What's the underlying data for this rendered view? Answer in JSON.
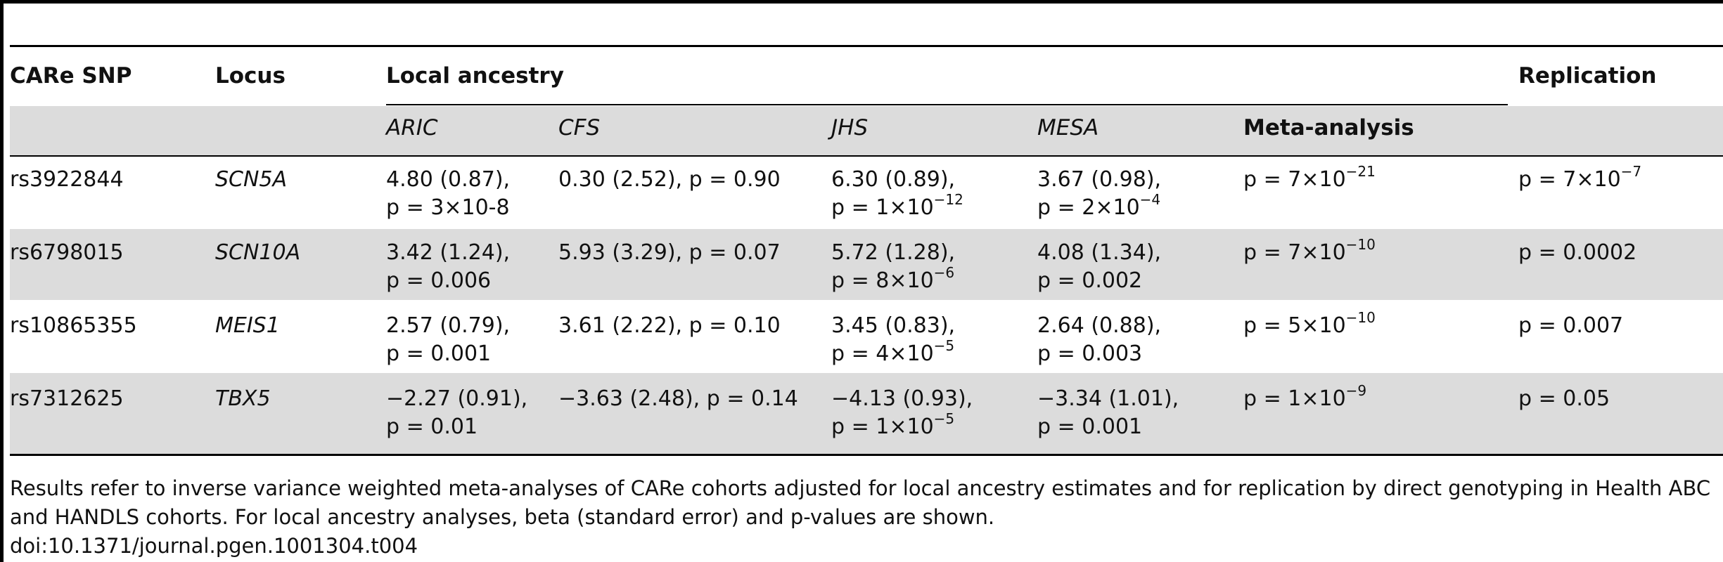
{
  "headers": {
    "snp": "CARe SNP",
    "locus": "Locus",
    "local_ancestry": "Local ancestry",
    "replication": "Replication",
    "aric": "ARIC",
    "cfs": "CFS",
    "jhs": "JHS",
    "mesa": "MESA",
    "meta": "Meta-analysis"
  },
  "rows": [
    {
      "snp": "rs3922844",
      "locus": "SCN5A",
      "aric_1": "4.80 (0.87),",
      "aric_2": "p = 3×10-8",
      "cfs_1": "0.30 (2.52), p = 0.90",
      "cfs_2": "",
      "jhs_1": "6.30 (0.89),",
      "jhs_2": "p = 1×10",
      "jhs_exp": "−12",
      "mesa_1": "3.67 (0.98),",
      "mesa_2": "p = 2×10",
      "mesa_exp": "−4",
      "meta": "p = 7×10",
      "meta_exp": "−21",
      "rep": "p = 7×10",
      "rep_exp": "−7"
    },
    {
      "snp": "rs6798015",
      "locus": "SCN10A",
      "aric_1": "3.42 (1.24),",
      "aric_2": "p = 0.006",
      "cfs_1": "5.93 (3.29), p = 0.07",
      "cfs_2": "",
      "jhs_1": "5.72 (1.28),",
      "jhs_2": "p = 8×10",
      "jhs_exp": "−6",
      "mesa_1": "4.08 (1.34),",
      "mesa_2": "p = 0.002",
      "mesa_exp": "",
      "meta": "p = 7×10",
      "meta_exp": "−10",
      "rep": "p = 0.0002",
      "rep_exp": ""
    },
    {
      "snp": "rs10865355",
      "locus": "MEIS1",
      "aric_1": "2.57 (0.79),",
      "aric_2": "p = 0.001",
      "cfs_1": "3.61 (2.22), p = 0.10",
      "cfs_2": "",
      "jhs_1": "3.45 (0.83),",
      "jhs_2": "p = 4×10",
      "jhs_exp": "−5",
      "mesa_1": "2.64 (0.88),",
      "mesa_2": "p = 0.003",
      "mesa_exp": "",
      "meta": "p = 5×10",
      "meta_exp": "−10",
      "rep": "p = 0.007",
      "rep_exp": ""
    },
    {
      "snp": "rs7312625",
      "locus": "TBX5",
      "aric_1": "−2.27 (0.91),",
      "aric_2": "p = 0.01",
      "cfs_1": "−3.63 (2.48), p = 0.14",
      "cfs_2": "",
      "jhs_1": "−4.13 (0.93),",
      "jhs_2": "p = 1×10",
      "jhs_exp": "−5",
      "mesa_1": "−3.34 (1.01),",
      "mesa_2": "p = 0.001",
      "mesa_exp": "",
      "meta": "p = 1×10",
      "meta_exp": "−9",
      "rep": "p = 0.05",
      "rep_exp": ""
    }
  ],
  "footer": {
    "note_line1": "Results refer to inverse variance weighted meta-analyses of CARe cohorts adjusted for local ancestry estimates and for replication by direct genotyping in Health ABC",
    "note_line2": "and HANDLS cohorts. For local ancestry analyses, beta (standard error) and p-values are shown.",
    "doi": "doi:10.1371/journal.pgen.1001304.t004"
  }
}
